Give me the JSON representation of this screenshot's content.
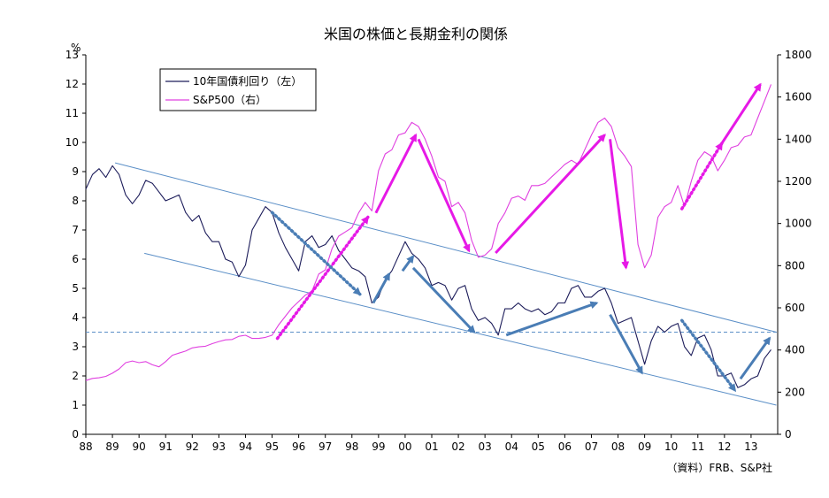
{
  "chart_data": {
    "type": "line",
    "title": "米国の株価と長期金利の関係",
    "unit_left": "%",
    "y_left_ticks": [
      "0",
      "1",
      "2",
      "3",
      "4",
      "5",
      "6",
      "7",
      "8",
      "9",
      "10",
      "11",
      "12",
      "13"
    ],
    "y_right_ticks": [
      "0",
      "200",
      "400",
      "600",
      "800",
      "1000",
      "1200",
      "1400",
      "1600",
      "1800"
    ],
    "ylim_left": [
      0,
      13
    ],
    "ylim_right": [
      0,
      1800
    ],
    "x_ticks": [
      "88",
      "89",
      "90",
      "91",
      "92",
      "93",
      "94",
      "95",
      "96",
      "97",
      "98",
      "99",
      "00",
      "01",
      "02",
      "03",
      "04",
      "05",
      "06",
      "07",
      "08",
      "09",
      "10",
      "11",
      "12",
      "13"
    ],
    "xlim": [
      1988,
      2014
    ],
    "grid": false,
    "legend_position": "top-left",
    "source_note": "（資料）FRB、S&P社",
    "colors": {
      "yield": "#1c1c5a",
      "sp500": "#e040e0",
      "arrow_magenta": "#e619e6",
      "arrow_blue": "#4a7db5",
      "channel": "#5b8fc7",
      "reference": "#5b8fc7"
    },
    "series": [
      {
        "name": "10年国債利回り（左）",
        "axis": "left",
        "x": [
          1988.0,
          1988.25,
          1988.5,
          1988.75,
          1989.0,
          1989.25,
          1989.5,
          1989.75,
          1990.0,
          1990.25,
          1990.5,
          1990.75,
          1991.0,
          1991.25,
          1991.5,
          1991.75,
          1992.0,
          1992.25,
          1992.5,
          1992.75,
          1993.0,
          1993.25,
          1993.5,
          1993.75,
          1994.0,
          1994.25,
          1994.5,
          1994.75,
          1995.0,
          1995.25,
          1995.5,
          1995.75,
          1996.0,
          1996.25,
          1996.5,
          1996.75,
          1997.0,
          1997.25,
          1997.5,
          1997.75,
          1998.0,
          1998.25,
          1998.5,
          1998.75,
          1999.0,
          1999.25,
          1999.5,
          1999.75,
          2000.0,
          2000.25,
          2000.5,
          2000.75,
          2001.0,
          2001.25,
          2001.5,
          2001.75,
          2002.0,
          2002.25,
          2002.5,
          2002.75,
          2003.0,
          2003.25,
          2003.5,
          2003.75,
          2004.0,
          2004.25,
          2004.5,
          2004.75,
          2005.0,
          2005.25,
          2005.5,
          2005.75,
          2006.0,
          2006.25,
          2006.5,
          2006.75,
          2007.0,
          2007.25,
          2007.5,
          2007.75,
          2008.0,
          2008.25,
          2008.5,
          2008.75,
          2009.0,
          2009.25,
          2009.5,
          2009.75,
          2010.0,
          2010.25,
          2010.5,
          2010.75,
          2011.0,
          2011.25,
          2011.5,
          2011.75,
          2012.0,
          2012.25,
          2012.5,
          2012.75,
          2013.0,
          2013.25,
          2013.5,
          2013.75
        ],
        "values": [
          8.4,
          8.9,
          9.1,
          8.8,
          9.2,
          8.9,
          8.2,
          7.9,
          8.2,
          8.7,
          8.6,
          8.3,
          8.0,
          8.1,
          8.2,
          7.6,
          7.3,
          7.5,
          6.9,
          6.6,
          6.6,
          6.0,
          5.9,
          5.4,
          5.8,
          7.0,
          7.4,
          7.8,
          7.6,
          6.9,
          6.4,
          6.0,
          5.6,
          6.6,
          6.8,
          6.4,
          6.5,
          6.8,
          6.3,
          6.0,
          5.7,
          5.6,
          5.4,
          4.5,
          4.7,
          5.3,
          5.6,
          6.1,
          6.6,
          6.2,
          6.0,
          5.7,
          5.1,
          5.2,
          5.1,
          4.6,
          5.0,
          5.1,
          4.3,
          3.9,
          4.0,
          3.8,
          3.4,
          4.3,
          4.3,
          4.5,
          4.3,
          4.2,
          4.3,
          4.1,
          4.2,
          4.5,
          4.5,
          5.0,
          5.1,
          4.7,
          4.7,
          4.9,
          5.0,
          4.5,
          3.8,
          3.9,
          4.0,
          3.2,
          2.4,
          3.2,
          3.7,
          3.5,
          3.7,
          3.8,
          3.0,
          2.7,
          3.3,
          3.4,
          2.9,
          2.0,
          2.0,
          2.1,
          1.6,
          1.7,
          1.9,
          2.0,
          2.6,
          2.9
        ]
      },
      {
        "name": "S&P500（右）",
        "axis": "right",
        "x": [
          1988.0,
          1988.25,
          1988.5,
          1988.75,
          1989.0,
          1989.25,
          1989.5,
          1989.75,
          1990.0,
          1990.25,
          1990.5,
          1990.75,
          1991.0,
          1991.25,
          1991.5,
          1991.75,
          1992.0,
          1992.25,
          1992.5,
          1992.75,
          1993.0,
          1993.25,
          1993.5,
          1993.75,
          1994.0,
          1994.25,
          1994.5,
          1994.75,
          1995.0,
          1995.25,
          1995.5,
          1995.75,
          1996.0,
          1996.25,
          1996.5,
          1996.75,
          1997.0,
          1997.25,
          1997.5,
          1997.75,
          1998.0,
          1998.25,
          1998.5,
          1998.75,
          1999.0,
          1999.25,
          1999.5,
          1999.75,
          2000.0,
          2000.25,
          2000.5,
          2000.75,
          2001.0,
          2001.25,
          2001.5,
          2001.75,
          2002.0,
          2002.25,
          2002.5,
          2002.75,
          2003.0,
          2003.25,
          2003.5,
          2003.75,
          2004.0,
          2004.25,
          2004.5,
          2004.75,
          2005.0,
          2005.25,
          2005.5,
          2005.75,
          2006.0,
          2006.25,
          2006.5,
          2006.75,
          2007.0,
          2007.25,
          2007.5,
          2007.75,
          2008.0,
          2008.25,
          2008.5,
          2008.75,
          2009.0,
          2009.25,
          2009.5,
          2009.75,
          2010.0,
          2010.25,
          2010.5,
          2010.75,
          2011.0,
          2011.25,
          2011.5,
          2011.75,
          2012.0,
          2012.25,
          2012.5,
          2012.75,
          2013.0,
          2013.25,
          2013.5,
          2013.75
        ],
        "values": [
          255,
          265,
          268,
          275,
          290,
          310,
          340,
          348,
          340,
          345,
          330,
          320,
          345,
          375,
          385,
          395,
          410,
          415,
          418,
          430,
          440,
          448,
          450,
          465,
          470,
          455,
          455,
          460,
          470,
          520,
          560,
          600,
          630,
          660,
          680,
          760,
          780,
          880,
          940,
          960,
          980,
          1050,
          1100,
          1060,
          1250,
          1330,
          1350,
          1420,
          1430,
          1480,
          1460,
          1400,
          1320,
          1220,
          1200,
          1080,
          1100,
          1050,
          920,
          840,
          850,
          880,
          1000,
          1050,
          1120,
          1130,
          1110,
          1180,
          1180,
          1190,
          1220,
          1250,
          1280,
          1300,
          1280,
          1350,
          1420,
          1480,
          1500,
          1460,
          1360,
          1320,
          1270,
          900,
          790,
          850,
          1030,
          1080,
          1100,
          1180,
          1080,
          1200,
          1300,
          1340,
          1320,
          1250,
          1300,
          1360,
          1370,
          1410,
          1420,
          1500,
          1580,
          1660
        ]
      }
    ],
    "annotations": {
      "magenta_arrows": [
        {
          "style": "dotted",
          "from": [
            1995.2,
            455
          ],
          "to": [
            1998.6,
            1030
          ]
        },
        {
          "style": "solid",
          "from": [
            1998.9,
            1050
          ],
          "to": [
            2000.4,
            1420
          ]
        },
        {
          "style": "solid",
          "from": [
            2000.5,
            1400
          ],
          "to": [
            2002.4,
            870
          ]
        },
        {
          "style": "solid",
          "from": [
            2003.4,
            860
          ],
          "to": [
            2007.5,
            1420
          ]
        },
        {
          "style": "solid",
          "from": [
            2007.7,
            1400
          ],
          "to": [
            2008.3,
            790
          ]
        },
        {
          "style": "dotted",
          "from": [
            2010.4,
            1070
          ],
          "to": [
            2011.9,
            1380
          ]
        },
        {
          "style": "solid",
          "from": [
            2011.9,
            1380
          ],
          "to": [
            2013.35,
            1660
          ]
        }
      ],
      "blue_arrows": [
        {
          "style": "dotted",
          "from": [
            1995.0,
            7.6
          ],
          "to": [
            1998.3,
            4.8
          ]
        },
        {
          "style": "solid",
          "from": [
            1998.8,
            4.5
          ],
          "to": [
            1999.4,
            5.5
          ]
        },
        {
          "style": "solid",
          "from": [
            1999.9,
            5.6
          ],
          "to": [
            2000.3,
            6.1
          ]
        },
        {
          "style": "solid",
          "from": [
            2000.3,
            5.7
          ],
          "to": [
            2002.6,
            3.5
          ]
        },
        {
          "style": "solid",
          "from": [
            2003.8,
            3.4
          ],
          "to": [
            2007.2,
            4.5
          ]
        },
        {
          "style": "solid",
          "from": [
            2007.7,
            4.1
          ],
          "to": [
            2008.9,
            2.1
          ]
        },
        {
          "style": "dotted",
          "from": [
            2010.4,
            3.9
          ],
          "to": [
            2012.4,
            1.5
          ]
        },
        {
          "style": "solid",
          "from": [
            2012.6,
            1.9
          ],
          "to": [
            2013.7,
            3.3
          ]
        }
      ],
      "channel_upper": {
        "from": [
          1989.1,
          9.3
        ],
        "to": [
          2013.95,
          3.5
        ]
      },
      "channel_lower": {
        "from": [
          1990.2,
          6.2
        ],
        "to": [
          2013.95,
          1.0
        ]
      },
      "reference_line": {
        "y": 3.5,
        "style": "dashed"
      }
    }
  }
}
